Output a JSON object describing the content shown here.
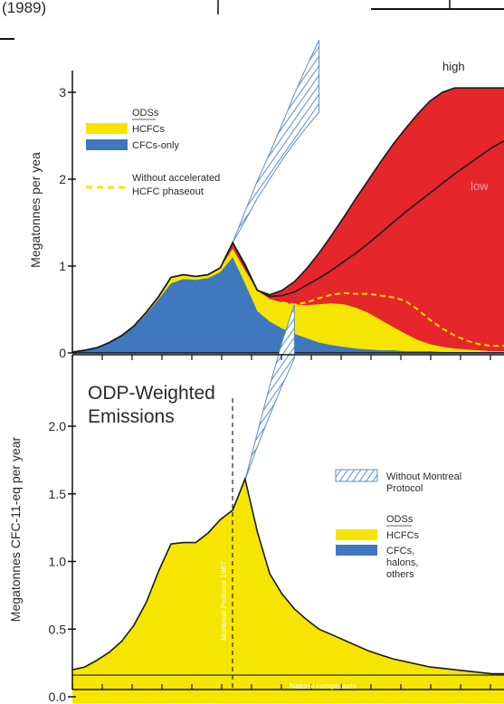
{
  "top_caption": "(1989)",
  "chart_data": [
    {
      "type": "area",
      "ylabel": "Megatonnes per yea",
      "ylim": [
        0,
        3
      ],
      "yticks": [
        "0",
        "1",
        "2",
        "3"
      ],
      "grid": false,
      "legend_placement": "top-left",
      "legend": {
        "header": "ODSs",
        "hcfc": "HCFCs",
        "cfc": "CFCs-only",
        "dashed_line1": "Without accelerated",
        "dashed_line2": "HCFC phaseout"
      },
      "annotations": {
        "high": "high",
        "low": "low"
      },
      "colors": {
        "cfc": "#3f78be",
        "hcfc": "#f6e500",
        "scenario": "#e5262a",
        "no_montreal": "#5b8fca",
        "dashed": "#f6e500"
      },
      "x_index": [
        0,
        1,
        2,
        3,
        4,
        5,
        6,
        7,
        8,
        9,
        10,
        11,
        12,
        13,
        14,
        15,
        16,
        17,
        18,
        19,
        20,
        21,
        22,
        23,
        24,
        25,
        26,
        27,
        28,
        29,
        30,
        31,
        32,
        33,
        34,
        35
      ],
      "series": [
        {
          "key": "cfc",
          "values": [
            0.01,
            0.03,
            0.06,
            0.12,
            0.2,
            0.3,
            0.45,
            0.62,
            0.8,
            0.85,
            0.84,
            0.86,
            0.93,
            1.1,
            0.8,
            0.48,
            0.36,
            0.28,
            0.22,
            0.17,
            0.12,
            0.09,
            0.07,
            0.05,
            0.04,
            0.03,
            0.03,
            0.02,
            0.02,
            0.02,
            0.01,
            0.01,
            0.01,
            0.01,
            0.01,
            0.01
          ]
        },
        {
          "key": "hcfc_top",
          "values": [
            0.01,
            0.03,
            0.06,
            0.12,
            0.2,
            0.31,
            0.47,
            0.65,
            0.87,
            0.9,
            0.88,
            0.9,
            0.98,
            1.2,
            0.95,
            0.72,
            0.62,
            0.58,
            0.56,
            0.55,
            0.56,
            0.57,
            0.56,
            0.52,
            0.46,
            0.38,
            0.3,
            0.22,
            0.15,
            0.1,
            0.07,
            0.05,
            0.04,
            0.03,
            0.02,
            0.02
          ]
        },
        {
          "key": "total_low",
          "values": [
            0.01,
            0.03,
            0.06,
            0.12,
            0.2,
            0.31,
            0.47,
            0.65,
            0.87,
            0.9,
            0.88,
            0.9,
            0.98,
            1.27,
            1.0,
            0.72,
            0.65,
            0.66,
            0.7,
            0.78,
            0.86,
            0.95,
            1.05,
            1.15,
            1.26,
            1.38,
            1.5,
            1.62,
            1.73,
            1.84,
            1.95,
            2.06,
            2.16,
            2.26,
            2.36,
            2.44
          ]
        },
        {
          "key": "total_high",
          "values": [
            0.01,
            0.03,
            0.06,
            0.12,
            0.2,
            0.31,
            0.47,
            0.65,
            0.87,
            0.9,
            0.88,
            0.9,
            0.98,
            1.27,
            1.02,
            0.72,
            0.67,
            0.72,
            0.82,
            0.97,
            1.15,
            1.35,
            1.56,
            1.78,
            1.99,
            2.2,
            2.4,
            2.58,
            2.75,
            2.9,
            3.0,
            3.05,
            3.05,
            3.05,
            3.05,
            3.05
          ]
        },
        {
          "key": "without_accelerated",
          "values": [
            null,
            null,
            null,
            null,
            null,
            null,
            null,
            null,
            null,
            null,
            null,
            null,
            null,
            null,
            null,
            null,
            null,
            0.58,
            0.56,
            0.58,
            0.63,
            0.67,
            0.69,
            0.68,
            0.68,
            0.66,
            0.64,
            0.6,
            0.5,
            0.38,
            0.28,
            0.2,
            0.14,
            0.1,
            0.08,
            0.08
          ]
        }
      ],
      "no_montreal": {
        "x_index": [
          13,
          14,
          15,
          16,
          17,
          18,
          19,
          20
        ],
        "low": [
          1.27,
          1.52,
          1.78,
          2.0,
          2.22,
          2.42,
          2.6,
          2.77
        ],
        "high": [
          1.27,
          1.63,
          1.98,
          2.3,
          2.63,
          2.98,
          3.3,
          3.6
        ]
      }
    },
    {
      "type": "area",
      "title_line1": "ODP-Weighted",
      "title_line2": "Emissions",
      "ylabel": "Megatonnes CFC-11-eq per year",
      "ylim": [
        0,
        2.4
      ],
      "yticks": [
        "0.0",
        "0.5",
        "1.0",
        "1.5",
        "2.0"
      ],
      "grid": false,
      "legend_placement": "right",
      "legend": {
        "no_montreal1": "Without Montreal",
        "no_montreal2": "Protocol",
        "header": "ODSs",
        "hcfc": "HCFCs",
        "cfc1": "CFCs,",
        "cfc2": "halons,",
        "cfc3": "others"
      },
      "annotations": {
        "protocol": "Montreal Protocol 1987",
        "natural": "Natural compounds"
      },
      "colors": {
        "cfc": "#3f78be",
        "hcfc": "#f6e500",
        "no_montreal": "#5b8fca"
      },
      "x_index": [
        0,
        1,
        2,
        3,
        4,
        5,
        6,
        7,
        8,
        9,
        10,
        11,
        12,
        13,
        14,
        15,
        16,
        17,
        18,
        19,
        20,
        21,
        22,
        23,
        24,
        25,
        26,
        27,
        28,
        29,
        30,
        31,
        32,
        33,
        34,
        35
      ],
      "series": [
        {
          "key": "cfc",
          "values": [
            0.2,
            0.22,
            0.27,
            0.33,
            0.41,
            0.53,
            0.7,
            0.93,
            1.12,
            1.13,
            1.13,
            1.2,
            1.3,
            1.37,
            1.6,
            1.2,
            0.88,
            0.72,
            0.6,
            0.52,
            0.45,
            0.41,
            0.37,
            0.34,
            0.31,
            0.28,
            0.26,
            0.24,
            0.22,
            0.21,
            0.2,
            0.19,
            0.18,
            0.18,
            0.17,
            0.17
          ]
        },
        {
          "key": "hcfc_top",
          "values": [
            0.2,
            0.22,
            0.27,
            0.33,
            0.41,
            0.53,
            0.7,
            0.93,
            1.13,
            1.14,
            1.14,
            1.21,
            1.31,
            1.38,
            1.61,
            1.22,
            0.91,
            0.76,
            0.65,
            0.57,
            0.5,
            0.46,
            0.42,
            0.38,
            0.34,
            0.31,
            0.28,
            0.26,
            0.24,
            0.22,
            0.21,
            0.2,
            0.19,
            0.18,
            0.17,
            0.17
          ]
        },
        {
          "key": "natural",
          "values": [
            0.16,
            0.16,
            0.16,
            0.16,
            0.16,
            0.16,
            0.16,
            0.16,
            0.16,
            0.16,
            0.16,
            0.16,
            0.16,
            0.16,
            0.16,
            0.16,
            0.16,
            0.16,
            0.16,
            0.16,
            0.16,
            0.16,
            0.16,
            0.16,
            0.16,
            0.16,
            0.16,
            0.16,
            0.16,
            0.16,
            0.16,
            0.16,
            0.16,
            0.16,
            0.16,
            0.16
          ]
        }
      ],
      "no_montreal": {
        "x_index": [
          14,
          15,
          16,
          17,
          18
        ],
        "low": [
          1.6,
          1.85,
          2.08,
          2.3,
          2.5
        ],
        "high": [
          1.6,
          1.95,
          2.3,
          2.62,
          2.9
        ]
      }
    }
  ]
}
